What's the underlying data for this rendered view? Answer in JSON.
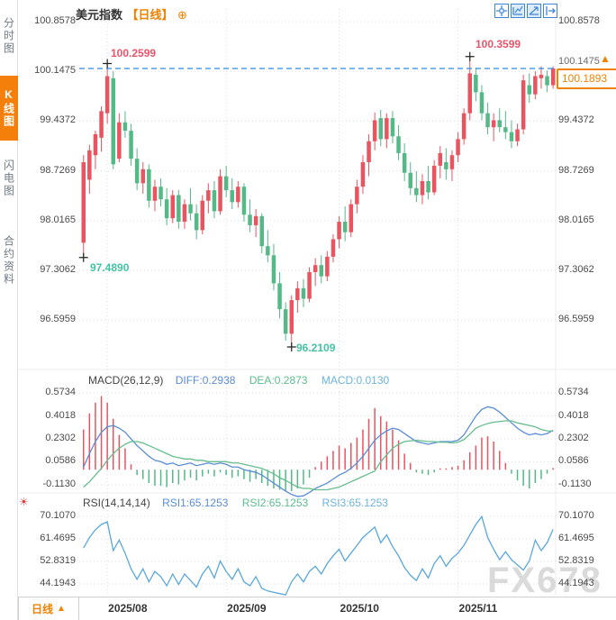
{
  "header": {
    "title": "美元指数",
    "period_tag": "【日线】"
  },
  "icons": {
    "plus_circle": "⊕",
    "triangle_up": "▲",
    "sun": "☀"
  },
  "toolbar": {
    "icon_names": [
      "crosshair",
      "frame-scale",
      "trend-arrow",
      "export"
    ]
  },
  "sidebar": {
    "tabs": [
      {
        "label": "分时图",
        "active": false
      },
      {
        "label": "K线图",
        "active": true
      },
      {
        "label": "闪电图",
        "active": false
      },
      {
        "label": "合约资料",
        "active": false
      }
    ]
  },
  "price_axis": [
    "100.8578",
    "100.1475",
    "99.4372",
    "98.7269",
    "98.0165",
    "97.3062",
    "96.5959"
  ],
  "current_price": "100.1893",
  "current_axis_label": "100.1475",
  "annotations": {
    "high1": "100.2599",
    "low1": "97.4890",
    "low2": "96.2109",
    "high2": "100.3599"
  },
  "macd_panel": {
    "title": "MACD(26,12,9)",
    "diff_label": "DIFF:0.2938",
    "dea_label": "DEA:0.2873",
    "macd_label": "MACD:0.0130",
    "axis": [
      "0.5734",
      "0.4018",
      "0.2302",
      "0.0586",
      "-0.1130"
    ]
  },
  "rsi_panel": {
    "title": "RSI(14,14,14)",
    "rsi1_label": "RSI1:65.1253",
    "rsi2_label": "RSI2:65.1253",
    "rsi3_label": "RSI3:65.1253",
    "axis": [
      "70.1070",
      "61.4695",
      "52.8319",
      "44.1943"
    ]
  },
  "bottom": {
    "period": "日线",
    "months": [
      "2025/08",
      "2025/09",
      "2025/10",
      "2025/11"
    ]
  },
  "watermark": "FX678",
  "colors": {
    "up": "#e8545f",
    "down": "#54b887",
    "accent": "#f08200",
    "price_dash": "#2e8be6",
    "diff_line": "#5a8dd6",
    "dea_line": "#66bd8d",
    "rsi_line": "#5aa7dc",
    "grid": "#d9dde6",
    "cross": "#222222"
  },
  "chart_data": {
    "type": "candlestick",
    "title": "美元指数 日线 (US Dollar Index, daily)",
    "ylim": [
      96.21,
      100.86
    ],
    "y_ticks": [
      100.8578,
      100.1475,
      99.4372,
      98.7269,
      98.0165,
      97.3062,
      96.5959
    ],
    "last_close": 100.1893,
    "month_tick_indices": [
      4,
      24,
      43,
      63
    ],
    "markers": [
      {
        "index": 4,
        "value": 100.2599
      },
      {
        "index": 0,
        "value": 97.489
      },
      {
        "index": 35,
        "value": 96.2109
      },
      {
        "index": 65,
        "value": 100.3599
      }
    ],
    "candles": [
      [
        97.7,
        98.95,
        97.49,
        98.85
      ],
      [
        98.6,
        99.1,
        98.4,
        99.02
      ],
      [
        98.95,
        99.3,
        98.75,
        99.25
      ],
      [
        99.2,
        99.65,
        99.0,
        99.58
      ],
      [
        99.55,
        100.26,
        99.4,
        100.08
      ],
      [
        100.05,
        100.15,
        98.75,
        98.82
      ],
      [
        98.9,
        99.55,
        98.85,
        99.42
      ],
      [
        99.42,
        99.58,
        99.2,
        99.3
      ],
      [
        99.3,
        99.4,
        98.8,
        98.9
      ],
      [
        98.9,
        99.05,
        98.45,
        98.55
      ],
      [
        98.55,
        98.85,
        98.4,
        98.75
      ],
      [
        98.75,
        98.82,
        98.2,
        98.3
      ],
      [
        98.3,
        98.6,
        98.15,
        98.5
      ],
      [
        98.5,
        98.62,
        98.22,
        98.32
      ],
      [
        98.32,
        98.48,
        97.95,
        98.05
      ],
      [
        98.05,
        98.45,
        97.98,
        98.38
      ],
      [
        98.38,
        98.45,
        97.9,
        98.0
      ],
      [
        98.0,
        98.32,
        97.9,
        98.25
      ],
      [
        98.25,
        98.48,
        98.02,
        98.12
      ],
      [
        98.12,
        98.25,
        97.75,
        97.88
      ],
      [
        97.88,
        98.38,
        97.82,
        98.3
      ],
      [
        98.3,
        98.55,
        98.12,
        98.45
      ],
      [
        98.45,
        98.58,
        98.05,
        98.15
      ],
      [
        98.15,
        98.75,
        98.1,
        98.65
      ],
      [
        98.65,
        98.8,
        98.35,
        98.45
      ],
      [
        98.45,
        98.62,
        98.18,
        98.28
      ],
      [
        98.28,
        98.58,
        98.2,
        98.5
      ],
      [
        98.5,
        98.55,
        98.0,
        98.1
      ],
      [
        98.1,
        98.32,
        97.85,
        97.95
      ],
      [
        97.95,
        98.18,
        97.78,
        98.08
      ],
      [
        98.08,
        98.12,
        97.55,
        97.65
      ],
      [
        97.65,
        97.88,
        97.42,
        97.52
      ],
      [
        97.52,
        97.68,
        97.02,
        97.12
      ],
      [
        97.12,
        97.28,
        96.62,
        96.75
      ],
      [
        96.75,
        96.85,
        96.3,
        96.4
      ],
      [
        96.4,
        96.95,
        96.21,
        96.88
      ],
      [
        96.88,
        97.15,
        96.7,
        97.05
      ],
      [
        97.05,
        97.18,
        96.78,
        96.9
      ],
      [
        96.9,
        97.35,
        96.85,
        97.28
      ],
      [
        97.28,
        97.48,
        97.08,
        97.38
      ],
      [
        97.38,
        97.52,
        97.12,
        97.22
      ],
      [
        97.22,
        97.58,
        97.15,
        97.5
      ],
      [
        97.5,
        97.82,
        97.42,
        97.75
      ],
      [
        97.75,
        98.08,
        97.62,
        98.0
      ],
      [
        98.0,
        98.22,
        97.72,
        97.85
      ],
      [
        97.85,
        98.32,
        97.78,
        98.25
      ],
      [
        98.25,
        98.6,
        98.12,
        98.5
      ],
      [
        98.5,
        98.95,
        98.4,
        98.85
      ],
      [
        98.85,
        99.25,
        98.65,
        99.15
      ],
      [
        99.15,
        99.56,
        99.02,
        99.45
      ],
      [
        99.48,
        99.6,
        99.08,
        99.18
      ],
      [
        99.18,
        99.55,
        99.05,
        99.48
      ],
      [
        99.48,
        99.58,
        99.12,
        99.22
      ],
      [
        99.22,
        99.38,
        98.88,
        98.98
      ],
      [
        98.98,
        99.12,
        98.58,
        98.7
      ],
      [
        98.7,
        98.85,
        98.38,
        98.48
      ],
      [
        98.48,
        98.72,
        98.28,
        98.38
      ],
      [
        98.38,
        98.68,
        98.25,
        98.58
      ],
      [
        98.58,
        98.8,
        98.32,
        98.42
      ],
      [
        98.42,
        98.88,
        98.38,
        98.8
      ],
      [
        98.8,
        99.08,
        98.62,
        98.98
      ],
      [
        98.85,
        99.05,
        98.6,
        98.75
      ],
      [
        98.75,
        99.02,
        98.58,
        98.95
      ],
      [
        98.95,
        99.28,
        98.85,
        99.18
      ],
      [
        99.18,
        99.62,
        99.1,
        99.55
      ],
      [
        99.55,
        100.36,
        99.45,
        100.12
      ],
      [
        100.1,
        100.2,
        99.72,
        99.85
      ],
      [
        99.85,
        99.95,
        99.45,
        99.55
      ],
      [
        99.55,
        99.7,
        99.25,
        99.35
      ],
      [
        99.35,
        99.55,
        99.15,
        99.45
      ],
      [
        99.45,
        99.62,
        99.28,
        99.35
      ],
      [
        99.35,
        99.58,
        99.18,
        99.28
      ],
      [
        99.28,
        99.45,
        99.05,
        99.15
      ],
      [
        99.15,
        99.4,
        99.08,
        99.32
      ],
      [
        99.32,
        100.1,
        99.25,
        100.02
      ],
      [
        99.95,
        100.12,
        99.7,
        99.82
      ],
      [
        99.82,
        100.15,
        99.75,
        100.08
      ],
      [
        100.05,
        100.22,
        99.9,
        100.1
      ],
      [
        100.08,
        100.16,
        99.85,
        99.95
      ],
      [
        99.95,
        100.22,
        99.9,
        100.19
      ]
    ],
    "macd": {
      "diff": [
        0.02,
        0.12,
        0.21,
        0.28,
        0.32,
        0.33,
        0.31,
        0.28,
        0.23,
        0.18,
        0.14,
        0.1,
        0.07,
        0.06,
        0.04,
        0.05,
        0.03,
        0.04,
        0.05,
        0.03,
        0.04,
        0.05,
        0.04,
        0.05,
        0.04,
        0.02,
        0.02,
        0.0,
        -0.01,
        -0.02,
        -0.04,
        -0.07,
        -0.1,
        -0.13,
        -0.16,
        -0.185,
        -0.2,
        -0.195,
        -0.17,
        -0.14,
        -0.12,
        -0.1,
        -0.07,
        -0.04,
        -0.02,
        0.01,
        0.05,
        0.1,
        0.16,
        0.22,
        0.26,
        0.29,
        0.31,
        0.3,
        0.27,
        0.24,
        0.21,
        0.2,
        0.19,
        0.2,
        0.21,
        0.21,
        0.21,
        0.22,
        0.26,
        0.33,
        0.4,
        0.45,
        0.47,
        0.46,
        0.43,
        0.39,
        0.35,
        0.31,
        0.28,
        0.26,
        0.27,
        0.26,
        0.27,
        0.2938
      ],
      "dea": [
        -0.13,
        -0.09,
        -0.04,
        0.01,
        0.07,
        0.12,
        0.16,
        0.19,
        0.21,
        0.21,
        0.2,
        0.18,
        0.16,
        0.14,
        0.12,
        0.1,
        0.09,
        0.08,
        0.08,
        0.07,
        0.07,
        0.06,
        0.06,
        0.06,
        0.06,
        0.05,
        0.05,
        0.04,
        0.03,
        0.02,
        0.01,
        -0.01,
        -0.03,
        -0.06,
        -0.08,
        -0.105,
        -0.13,
        -0.14,
        -0.14,
        -0.15,
        -0.15,
        -0.15,
        -0.14,
        -0.13,
        -0.11,
        -0.09,
        -0.07,
        -0.05,
        -0.03,
        -0.01,
        0.06,
        0.11,
        0.16,
        0.19,
        0.21,
        0.215,
        0.22,
        0.215,
        0.21,
        0.21,
        0.205,
        0.205,
        0.2,
        0.205,
        0.225,
        0.265,
        0.31,
        0.33,
        0.345,
        0.355,
        0.36,
        0.365,
        0.365,
        0.35,
        0.34,
        0.33,
        0.32,
        0.3,
        0.29,
        0.2873
      ],
      "hist": [
        0.3,
        0.42,
        0.5,
        0.55,
        0.5,
        0.38,
        0.26,
        0.16,
        0.04,
        -0.04,
        -0.07,
        -0.1,
        -0.12,
        -0.12,
        -0.13,
        -0.1,
        -0.11,
        -0.08,
        -0.06,
        -0.08,
        -0.05,
        -0.03,
        -0.05,
        -0.02,
        -0.04,
        -0.06,
        -0.05,
        -0.07,
        -0.09,
        -0.07,
        -0.1,
        -0.12,
        -0.14,
        -0.15,
        -0.16,
        -0.16,
        -0.14,
        -0.11,
        -0.06,
        0.02,
        0.06,
        0.1,
        0.14,
        0.18,
        0.16,
        0.2,
        0.24,
        0.3,
        0.38,
        0.46,
        0.4,
        0.36,
        0.3,
        0.22,
        0.12,
        0.05,
        -0.02,
        -0.03,
        -0.04,
        -0.02,
        0.01,
        0.01,
        0.02,
        0.03,
        0.07,
        0.13,
        0.18,
        0.24,
        0.25,
        0.21,
        0.14,
        0.05,
        -0.03,
        -0.08,
        -0.12,
        -0.14,
        -0.1,
        -0.07,
        -0.03,
        0.013
      ]
    },
    "rsi": [
      58,
      62,
      65,
      67,
      68,
      57,
      61,
      56,
      50,
      46,
      50,
      45,
      49,
      47,
      43.5,
      48,
      44,
      48,
      45.5,
      43,
      48,
      51,
      46.5,
      53,
      49,
      46,
      50,
      45,
      43.5,
      47,
      42.5,
      41.5,
      41,
      40.5,
      40,
      45,
      48,
      45,
      49,
      51,
      48,
      52,
      55,
      57.5,
      53,
      56,
      59,
      62,
      64,
      66,
      60,
      63,
      58.5,
      55,
      50.5,
      47.5,
      45.5,
      50,
      46.5,
      52,
      55,
      51,
      54,
      56,
      59,
      63,
      67,
      70,
      62,
      57.5,
      53.5,
      56.5,
      53.5,
      51.5,
      49.5,
      53,
      61,
      57,
      60,
      65.1253
    ]
  }
}
